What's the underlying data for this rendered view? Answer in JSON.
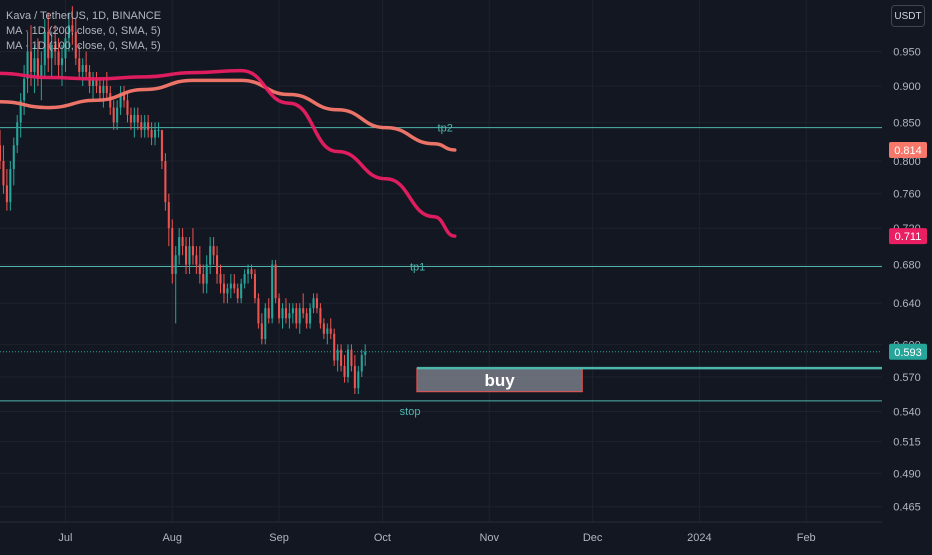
{
  "header": {
    "symbol_line": "Kava / TetherUS, 1D, BINANCE",
    "ma_line_1": "MA · 1D (200, close, 0, SMA, 5)",
    "ma_line_2": "MA · 1D (100, close, 0, SMA, 5)",
    "currency": "USDT"
  },
  "colors": {
    "background": "#131722",
    "grid": "#1e222d",
    "up": "#26a69a",
    "down": "#ef5350",
    "ma200": "#f7786b",
    "ma100": "#e91e63",
    "level_line": "#4db6ac",
    "last_price": "#26a69a",
    "buy_box_fill": "#787b86",
    "buy_box_border": "#ef5350"
  },
  "chart_data": {
    "type": "candlestick",
    "y_scale": "log",
    "ylim": [
      0.454,
      1.03
    ],
    "y_ticks": [
      "0.950",
      "0.900",
      "0.850",
      "0.800",
      "0.760",
      "0.720",
      "0.680",
      "0.640",
      "0.600",
      "0.570",
      "0.540",
      "0.515",
      "0.490",
      "0.465"
    ],
    "x_labels": [
      "Jul",
      "Aug",
      "Sep",
      "Oct",
      "Nov",
      "Dec",
      "2024",
      "Feb"
    ],
    "x_label_dates": [
      "2023-07-01",
      "2023-08-01",
      "2023-09-01",
      "2023-10-01",
      "2023-11-01",
      "2023-12-01",
      "2024-01-01",
      "2024-02-01"
    ],
    "x_range": [
      "2023-06-12",
      "2024-02-23"
    ],
    "candles_start": "2023-06-12",
    "candles": [
      [
        0.82,
        0.84,
        0.79,
        0.8
      ],
      [
        0.8,
        0.82,
        0.76,
        0.77
      ],
      [
        0.77,
        0.79,
        0.74,
        0.75
      ],
      [
        0.75,
        0.8,
        0.74,
        0.79
      ],
      [
        0.79,
        0.83,
        0.77,
        0.82
      ],
      [
        0.82,
        0.86,
        0.81,
        0.85
      ],
      [
        0.85,
        0.89,
        0.83,
        0.88
      ],
      [
        0.88,
        0.93,
        0.86,
        0.91
      ],
      [
        0.91,
        0.98,
        0.89,
        0.95
      ],
      [
        0.95,
        0.99,
        0.9,
        0.92
      ],
      [
        0.92,
        0.96,
        0.89,
        0.94
      ],
      [
        0.94,
        0.97,
        0.9,
        0.91
      ],
      [
        0.91,
        0.95,
        0.88,
        0.93
      ],
      [
        0.93,
        1.0,
        0.91,
        0.98
      ],
      [
        0.98,
        1.01,
        0.92,
        0.94
      ],
      [
        0.94,
        0.98,
        0.91,
        0.96
      ],
      [
        0.96,
        0.99,
        0.93,
        0.95
      ],
      [
        0.95,
        0.97,
        0.91,
        0.93
      ],
      [
        0.93,
        0.96,
        0.9,
        0.94
      ],
      [
        0.94,
        0.98,
        0.92,
        0.97
      ],
      [
        0.97,
        1.01,
        0.95,
        0.99
      ],
      [
        0.99,
        1.02,
        0.96,
        0.98
      ],
      [
        0.98,
        1.0,
        0.93,
        0.94
      ],
      [
        0.94,
        0.96,
        0.91,
        0.92
      ],
      [
        0.92,
        0.94,
        0.9,
        0.93
      ],
      [
        0.93,
        0.95,
        0.91,
        0.92
      ],
      [
        0.92,
        0.93,
        0.89,
        0.9
      ],
      [
        0.9,
        0.92,
        0.88,
        0.91
      ],
      [
        0.91,
        0.92,
        0.89,
        0.9
      ],
      [
        0.9,
        0.91,
        0.88,
        0.89
      ],
      [
        0.89,
        0.91,
        0.87,
        0.9
      ],
      [
        0.9,
        0.92,
        0.88,
        0.89
      ],
      [
        0.89,
        0.9,
        0.86,
        0.87
      ],
      [
        0.87,
        0.88,
        0.84,
        0.85
      ],
      [
        0.85,
        0.88,
        0.84,
        0.87
      ],
      [
        0.87,
        0.9,
        0.86,
        0.89
      ],
      [
        0.89,
        0.9,
        0.87,
        0.88
      ],
      [
        0.88,
        0.89,
        0.85,
        0.86
      ],
      [
        0.86,
        0.87,
        0.84,
        0.85
      ],
      [
        0.85,
        0.87,
        0.83,
        0.86
      ],
      [
        0.86,
        0.87,
        0.84,
        0.85
      ],
      [
        0.85,
        0.86,
        0.83,
        0.84
      ],
      [
        0.84,
        0.86,
        0.83,
        0.85
      ],
      [
        0.85,
        0.86,
        0.83,
        0.84
      ],
      [
        0.84,
        0.85,
        0.82,
        0.83
      ],
      [
        0.83,
        0.85,
        0.82,
        0.84
      ],
      [
        0.84,
        0.85,
        0.83,
        0.84
      ],
      [
        0.84,
        0.84,
        0.79,
        0.8
      ],
      [
        0.8,
        0.81,
        0.74,
        0.75
      ],
      [
        0.75,
        0.76,
        0.7,
        0.72
      ],
      [
        0.72,
        0.73,
        0.66,
        0.67
      ],
      [
        0.67,
        0.7,
        0.62,
        0.69
      ],
      [
        0.69,
        0.72,
        0.68,
        0.71
      ],
      [
        0.71,
        0.72,
        0.69,
        0.7
      ],
      [
        0.7,
        0.71,
        0.67,
        0.68
      ],
      [
        0.68,
        0.71,
        0.67,
        0.7
      ],
      [
        0.7,
        0.72,
        0.68,
        0.69
      ],
      [
        0.69,
        0.7,
        0.67,
        0.68
      ],
      [
        0.68,
        0.7,
        0.66,
        0.67
      ],
      [
        0.67,
        0.68,
        0.65,
        0.66
      ],
      [
        0.66,
        0.69,
        0.65,
        0.68
      ],
      [
        0.68,
        0.71,
        0.67,
        0.7
      ],
      [
        0.7,
        0.71,
        0.68,
        0.69
      ],
      [
        0.69,
        0.7,
        0.66,
        0.67
      ],
      [
        0.67,
        0.68,
        0.65,
        0.66
      ],
      [
        0.66,
        0.67,
        0.64,
        0.65
      ],
      [
        0.65,
        0.66,
        0.64,
        0.655
      ],
      [
        0.655,
        0.67,
        0.645,
        0.66
      ],
      [
        0.66,
        0.67,
        0.65,
        0.655
      ],
      [
        0.655,
        0.66,
        0.64,
        0.645
      ],
      [
        0.645,
        0.665,
        0.64,
        0.66
      ],
      [
        0.66,
        0.675,
        0.655,
        0.67
      ],
      [
        0.67,
        0.68,
        0.66,
        0.675
      ],
      [
        0.675,
        0.68,
        0.665,
        0.67
      ],
      [
        0.67,
        0.675,
        0.64,
        0.645
      ],
      [
        0.645,
        0.65,
        0.615,
        0.62
      ],
      [
        0.62,
        0.63,
        0.6,
        0.605
      ],
      [
        0.605,
        0.64,
        0.6,
        0.635
      ],
      [
        0.635,
        0.645,
        0.62,
        0.625
      ],
      [
        0.625,
        0.685,
        0.62,
        0.68
      ],
      [
        0.68,
        0.685,
        0.64,
        0.645
      ],
      [
        0.645,
        0.65,
        0.62,
        0.625
      ],
      [
        0.625,
        0.64,
        0.615,
        0.635
      ],
      [
        0.635,
        0.645,
        0.62,
        0.625
      ],
      [
        0.625,
        0.64,
        0.615,
        0.63
      ],
      [
        0.63,
        0.64,
        0.62,
        0.635
      ],
      [
        0.635,
        0.64,
        0.615,
        0.62
      ],
      [
        0.62,
        0.64,
        0.61,
        0.635
      ],
      [
        0.635,
        0.65,
        0.625,
        0.63
      ],
      [
        0.63,
        0.635,
        0.615,
        0.62
      ],
      [
        0.62,
        0.64,
        0.615,
        0.635
      ],
      [
        0.635,
        0.65,
        0.63,
        0.645
      ],
      [
        0.645,
        0.65,
        0.63,
        0.635
      ],
      [
        0.635,
        0.64,
        0.615,
        0.62
      ],
      [
        0.62,
        0.625,
        0.605,
        0.61
      ],
      [
        0.61,
        0.62,
        0.6,
        0.615
      ],
      [
        0.615,
        0.625,
        0.605,
        0.61
      ],
      [
        0.61,
        0.615,
        0.58,
        0.585
      ],
      [
        0.585,
        0.6,
        0.575,
        0.595
      ],
      [
        0.595,
        0.6,
        0.575,
        0.58
      ],
      [
        0.58,
        0.59,
        0.565,
        0.57
      ],
      [
        0.57,
        0.6,
        0.565,
        0.595
      ],
      [
        0.595,
        0.6,
        0.575,
        0.58
      ],
      [
        0.58,
        0.59,
        0.555,
        0.56
      ],
      [
        0.56,
        0.58,
        0.555,
        0.575
      ],
      [
        0.575,
        0.595,
        0.57,
        0.59
      ],
      [
        0.59,
        0.6,
        0.58,
        0.593
      ]
    ],
    "series": [
      {
        "name": "MA · 1D (200, close, 0, SMA, 5)",
        "color": "#f7786b",
        "x": [
          "2023-06-12",
          "2023-06-26",
          "2023-07-10",
          "2023-07-24",
          "2023-08-07",
          "2023-08-21",
          "2023-09-04",
          "2023-09-18",
          "2023-10-02",
          "2023-10-16",
          "2023-10-22"
        ],
        "values": [
          0.878,
          0.87,
          0.88,
          0.895,
          0.908,
          0.908,
          0.888,
          0.867,
          0.843,
          0.822,
          0.814
        ]
      },
      {
        "name": "MA · 1D (100, close, 0, SMA, 5)",
        "color": "#e91e63",
        "x": [
          "2023-06-12",
          "2023-06-26",
          "2023-07-10",
          "2023-07-24",
          "2023-08-07",
          "2023-08-21",
          "2023-09-04",
          "2023-09-18",
          "2023-10-02",
          "2023-10-16",
          "2023-10-22"
        ],
        "values": [
          0.918,
          0.912,
          0.91,
          0.913,
          0.919,
          0.922,
          0.876,
          0.812,
          0.778,
          0.733,
          0.711
        ]
      }
    ],
    "levels": [
      {
        "label": "tp2",
        "value": 0.843,
        "label_date": "2023-10-17"
      },
      {
        "label": "tp1",
        "value": 0.678,
        "label_date": "2023-10-09"
      },
      {
        "label": "stop",
        "value": 0.549,
        "label_date": "2023-10-06"
      }
    ],
    "buy_zone": {
      "label": "buy",
      "low": 0.557,
      "high": 0.578,
      "from": "2023-10-11",
      "to": "2023-11-28"
    },
    "extended_level": {
      "value": 0.578,
      "from": "2023-10-11"
    },
    "price_badges": [
      {
        "value": 0.814,
        "text": "0.814",
        "color": "#f7786b"
      },
      {
        "value": 0.711,
        "text": "0.711",
        "color": "#e91e63"
      },
      {
        "value": 0.593,
        "text": "0.593",
        "color": "#26a69a"
      }
    ],
    "last_price": 0.593
  }
}
